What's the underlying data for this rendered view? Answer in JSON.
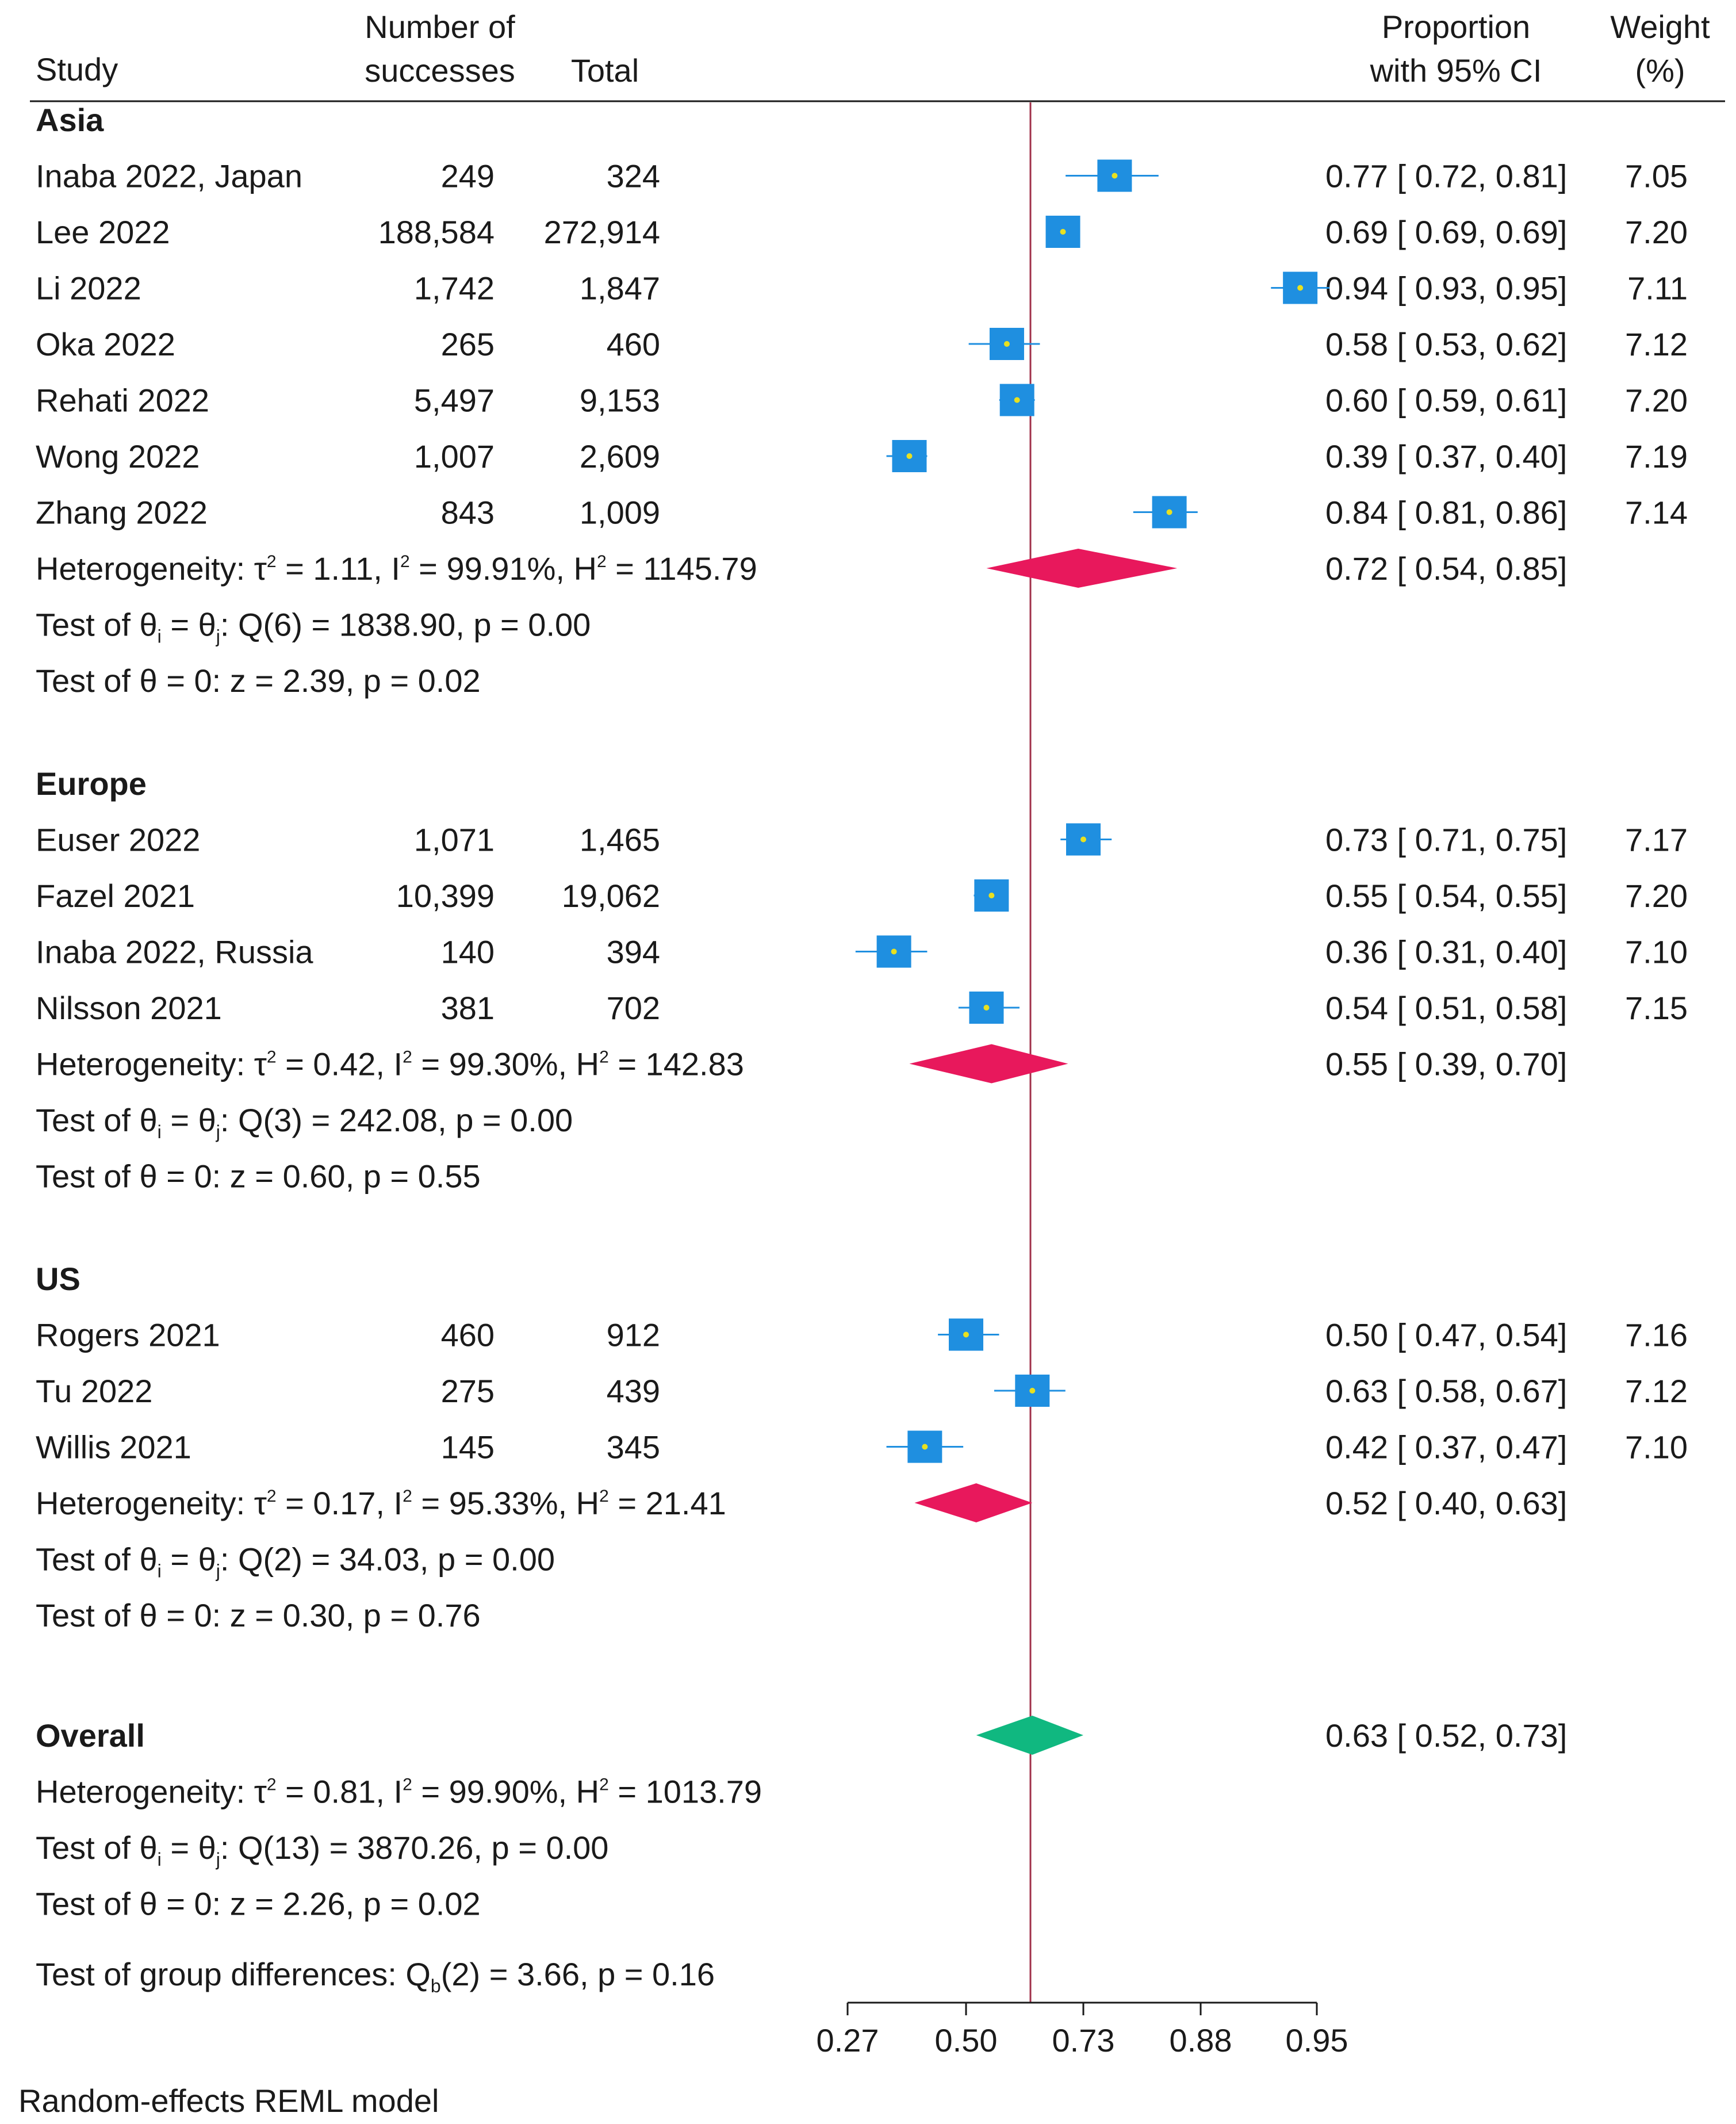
{
  "chart_data": {
    "type": "forest",
    "headers": {
      "study": "Study",
      "successes_line1": "Number of",
      "successes_line2": "successes",
      "total": "Total",
      "proportion_line1": "Proportion",
      "proportion_line2": "with 95% CI",
      "weight_line1": "Weight",
      "weight_line2": "(%)"
    },
    "axis": {
      "ticks": [
        {
          "label": "0.27",
          "value": 0.27
        },
        {
          "label": "0.50",
          "value": 0.5
        },
        {
          "label": "0.73",
          "value": 0.73
        },
        {
          "label": "0.88",
          "value": 0.88
        },
        {
          "label": "0.95",
          "value": 0.95
        }
      ],
      "reference_line": 0.63
    },
    "groups": [
      {
        "name": "Asia",
        "studies": [
          {
            "study": "Inaba 2022, Japan",
            "successes": "249",
            "total": "324",
            "est": 0.77,
            "lo": 0.72,
            "hi": 0.81,
            "ci_text": "0.77 [ 0.72,  0.81]",
            "weight": "7.05"
          },
          {
            "study": "Lee 2022",
            "successes": "188,584",
            "total": "272,914",
            "est": 0.69,
            "lo": 0.69,
            "hi": 0.69,
            "ci_text": "0.69 [ 0.69,  0.69]",
            "weight": "7.20"
          },
          {
            "study": "Li 2022",
            "successes": "1,742",
            "total": "1,847",
            "est": 0.94,
            "lo": 0.93,
            "hi": 0.95,
            "ci_text": "0.94 [ 0.93,  0.95]",
            "weight": "7.11"
          },
          {
            "study": "Oka 2022",
            "successes": "265",
            "total": "460",
            "est": 0.58,
            "lo": 0.53,
            "hi": 0.62,
            "ci_text": "0.58 [ 0.53,  0.62]",
            "weight": "7.12"
          },
          {
            "study": "Rehati 2022",
            "successes": "5,497",
            "total": "9,153",
            "est": 0.6,
            "lo": 0.59,
            "hi": 0.61,
            "ci_text": "0.60 [ 0.59,  0.61]",
            "weight": "7.20"
          },
          {
            "study": "Wong 2022",
            "successes": "1,007",
            "total": "2,609",
            "est": 0.39,
            "lo": 0.37,
            "hi": 0.4,
            "ci_text": "0.39 [ 0.37,  0.40]",
            "weight": "7.19"
          },
          {
            "study": "Zhang 2022",
            "successes": "843",
            "total": "1,009",
            "est": 0.84,
            "lo": 0.81,
            "hi": 0.86,
            "ci_text": "0.84 [ 0.81,  0.86]",
            "weight": "7.14"
          }
        ],
        "summary": {
          "est": 0.72,
          "lo": 0.54,
          "hi": 0.85,
          "ci_text": "0.72 [ 0.54,  0.85]"
        },
        "heterogeneity": {
          "tau2": "1.11",
          "i2": "99.91%",
          "h2": "1145.79"
        },
        "q_test": {
          "df": "6",
          "q": "1838.90",
          "p": "0.00"
        },
        "z_test": {
          "z": "2.39",
          "p": "0.02"
        }
      },
      {
        "name": "Europe",
        "studies": [
          {
            "study": "Euser 2022",
            "successes": "1,071",
            "total": "1,465",
            "est": 0.73,
            "lo": 0.71,
            "hi": 0.75,
            "ci_text": "0.73 [ 0.71,  0.75]",
            "weight": "7.17"
          },
          {
            "study": "Fazel 2021",
            "successes": "10,399",
            "total": "19,062",
            "est": 0.55,
            "lo": 0.54,
            "hi": 0.55,
            "ci_text": "0.55 [ 0.54,  0.55]",
            "weight": "7.20"
          },
          {
            "study": "Inaba 2022, Russia",
            "successes": "140",
            "total": "394",
            "est": 0.36,
            "lo": 0.31,
            "hi": 0.4,
            "ci_text": "0.36 [ 0.31,  0.40]",
            "weight": "7.10"
          },
          {
            "study": "Nilsson 2021",
            "successes": "381",
            "total": "702",
            "est": 0.54,
            "lo": 0.51,
            "hi": 0.58,
            "ci_text": "0.54 [ 0.51,  0.58]",
            "weight": "7.15"
          }
        ],
        "summary": {
          "est": 0.55,
          "lo": 0.39,
          "hi": 0.7,
          "ci_text": "0.55 [ 0.39,  0.70]"
        },
        "heterogeneity": {
          "tau2": "0.42",
          "i2": "99.30%",
          "h2": "142.83"
        },
        "q_test": {
          "df": "3",
          "q": "242.08",
          "p": "0.00"
        },
        "z_test": {
          "z": "0.60",
          "p": "0.55"
        }
      },
      {
        "name": "US",
        "studies": [
          {
            "study": "Rogers 2021",
            "successes": "460",
            "total": "912",
            "est": 0.5,
            "lo": 0.47,
            "hi": 0.54,
            "ci_text": "0.50 [ 0.47,  0.54]",
            "weight": "7.16"
          },
          {
            "study": "Tu 2022",
            "successes": "275",
            "total": "439",
            "est": 0.63,
            "lo": 0.58,
            "hi": 0.67,
            "ci_text": "0.63 [ 0.58,  0.67]",
            "weight": "7.12"
          },
          {
            "study": "Willis 2021",
            "successes": "145",
            "total": "345",
            "est": 0.42,
            "lo": 0.37,
            "hi": 0.47,
            "ci_text": "0.42 [ 0.37,  0.47]",
            "weight": "7.10"
          }
        ],
        "summary": {
          "est": 0.52,
          "lo": 0.4,
          "hi": 0.63,
          "ci_text": "0.52 [ 0.40,  0.63]"
        },
        "heterogeneity": {
          "tau2": "0.17",
          "i2": "95.33%",
          "h2": "21.41"
        },
        "q_test": {
          "df": "2",
          "q": "34.03",
          "p": "0.00"
        },
        "z_test": {
          "z": "0.30",
          "p": "0.76"
        }
      }
    ],
    "overall": {
      "name": "Overall",
      "summary": {
        "est": 0.63,
        "lo": 0.52,
        "hi": 0.73,
        "ci_text": "0.63 [ 0.52,  0.73]"
      },
      "heterogeneity": {
        "tau2": "0.81",
        "i2": "99.90%",
        "h2": "1013.79"
      },
      "q_test": {
        "df": "13",
        "q": "3870.26",
        "p": "0.00"
      },
      "z_test": {
        "z": "2.26",
        "p": "0.02"
      }
    },
    "group_test": {
      "df": "2",
      "qb": "3.66",
      "p": "0.16"
    },
    "footnote": "Random-effects REML model",
    "colors": {
      "marker": "#1f8fe0",
      "marker_dot": "#e8e020",
      "ci_line": "#1f8fe0",
      "group_diamond": "#e8185c",
      "overall_diamond": "#10b880",
      "reference_line": "#a0304a",
      "text": "#1a1a1a"
    }
  }
}
